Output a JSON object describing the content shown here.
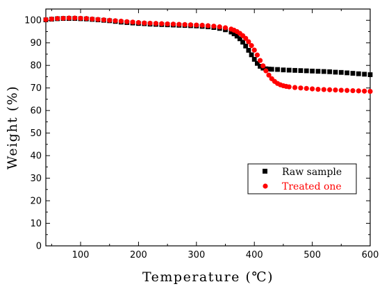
{
  "chart_data": {
    "type": "scatter",
    "title": "",
    "xlabel": "Temperature (℃)",
    "ylabel": "Weight (%)",
    "xlim": [
      40,
      600
    ],
    "ylim": [
      0,
      105
    ],
    "x_ticks": [
      100,
      200,
      300,
      400,
      500,
      600
    ],
    "y_ticks": [
      0,
      10,
      20,
      30,
      40,
      50,
      60,
      70,
      80,
      90,
      100
    ],
    "grid": false,
    "legend_position": "lower-right",
    "series": [
      {
        "name": "Raw sample",
        "marker": "square",
        "color": "#000000",
        "x": [
          40,
          50,
          60,
          70,
          80,
          90,
          100,
          110,
          120,
          130,
          140,
          150,
          160,
          170,
          180,
          190,
          200,
          210,
          220,
          230,
          240,
          250,
          260,
          270,
          280,
          290,
          300,
          310,
          320,
          330,
          340,
          350,
          360,
          365,
          370,
          375,
          380,
          385,
          390,
          395,
          400,
          405,
          410,
          415,
          420,
          425,
          430,
          440,
          450,
          460,
          470,
          480,
          490,
          500,
          510,
          520,
          530,
          540,
          550,
          560,
          570,
          580,
          590,
          600
        ],
        "values": [
          100.2,
          100.5,
          100.7,
          100.8,
          100.8,
          100.8,
          100.7,
          100.6,
          100.4,
          100.2,
          100.0,
          99.8,
          99.5,
          99.2,
          99.0,
          98.8,
          98.6,
          98.5,
          98.3,
          98.2,
          98.1,
          98.0,
          97.9,
          97.8,
          97.7,
          97.6,
          97.5,
          97.3,
          97.1,
          96.8,
          96.4,
          95.8,
          94.8,
          94.0,
          93.0,
          91.8,
          90.3,
          88.6,
          86.7,
          84.7,
          82.7,
          80.9,
          79.6,
          78.8,
          78.5,
          78.4,
          78.3,
          78.2,
          78.0,
          77.9,
          77.8,
          77.7,
          77.6,
          77.5,
          77.4,
          77.3,
          77.2,
          77.0,
          76.9,
          76.7,
          76.5,
          76.3,
          76.1,
          75.9
        ]
      },
      {
        "name": "Treated one",
        "marker": "circle",
        "color": "#ff0000",
        "x": [
          40,
          50,
          60,
          70,
          80,
          90,
          100,
          110,
          120,
          130,
          140,
          150,
          160,
          170,
          180,
          190,
          200,
          210,
          220,
          230,
          240,
          250,
          260,
          270,
          280,
          290,
          300,
          310,
          320,
          330,
          340,
          350,
          360,
          365,
          370,
          375,
          380,
          385,
          390,
          395,
          400,
          405,
          410,
          415,
          420,
          425,
          430,
          435,
          440,
          445,
          450,
          455,
          460,
          470,
          480,
          490,
          500,
          510,
          520,
          530,
          540,
          550,
          560,
          570,
          580,
          590,
          600
        ],
        "values": [
          100.3,
          100.6,
          100.8,
          100.9,
          101.0,
          101.0,
          100.9,
          100.8,
          100.6,
          100.4,
          100.2,
          100.0,
          99.8,
          99.6,
          99.4,
          99.2,
          99.0,
          98.8,
          98.7,
          98.6,
          98.5,
          98.4,
          98.3,
          98.2,
          98.1,
          98.0,
          97.9,
          97.8,
          97.6,
          97.4,
          97.1,
          96.7,
          96.1,
          95.6,
          95.0,
          94.2,
          93.2,
          92.0,
          90.5,
          88.8,
          86.8,
          84.6,
          82.2,
          79.8,
          77.6,
          75.7,
          74.1,
          72.9,
          72.0,
          71.4,
          71.0,
          70.7,
          70.5,
          70.2,
          70.0,
          69.8,
          69.6,
          69.4,
          69.3,
          69.2,
          69.1,
          69.0,
          68.9,
          68.8,
          68.7,
          68.6,
          68.5
        ]
      }
    ]
  }
}
